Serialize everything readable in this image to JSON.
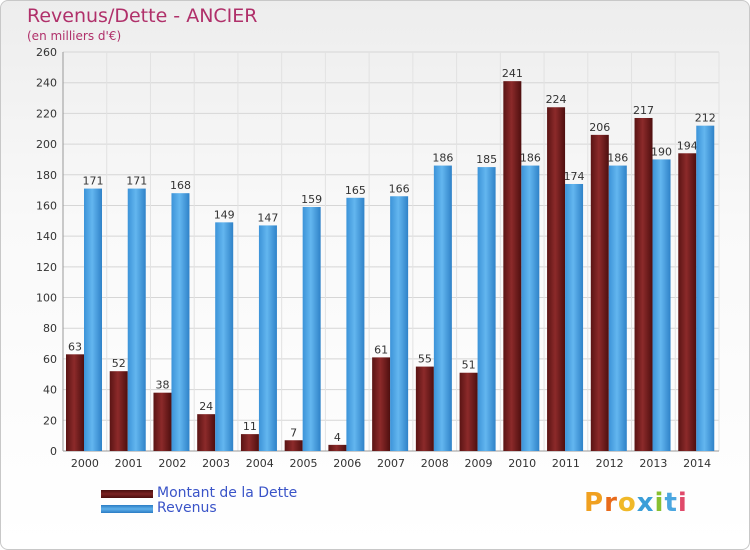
{
  "title": "Revenus/Dette - ANCIER",
  "subtitle": "(en milliers d'€)",
  "logo": "Proxiti",
  "colors": {
    "debt": "#7a2222",
    "revenue": "#4fa6e6",
    "title": "#b0306a",
    "legend_text": "#3a54c8"
  },
  "chart_data": {
    "type": "bar",
    "categories": [
      "2000",
      "2001",
      "2002",
      "2003",
      "2004",
      "2005",
      "2006",
      "2007",
      "2008",
      "2009",
      "2010",
      "2011",
      "2012",
      "2013",
      "2014"
    ],
    "series": [
      {
        "name": "Montant de la Dette",
        "values": [
          63,
          52,
          38,
          24,
          11,
          7,
          4,
          61,
          55,
          51,
          241,
          224,
          206,
          217,
          194
        ]
      },
      {
        "name": "Revenus",
        "values": [
          171,
          171,
          168,
          149,
          147,
          159,
          165,
          166,
          186,
          185,
          186,
          174,
          186,
          190,
          212
        ]
      }
    ],
    "ylim": [
      0,
      260
    ],
    "yticks": [
      0,
      20,
      40,
      60,
      80,
      100,
      120,
      140,
      160,
      180,
      200,
      220,
      240,
      260
    ],
    "grid": true,
    "legend": "bottom-left"
  }
}
